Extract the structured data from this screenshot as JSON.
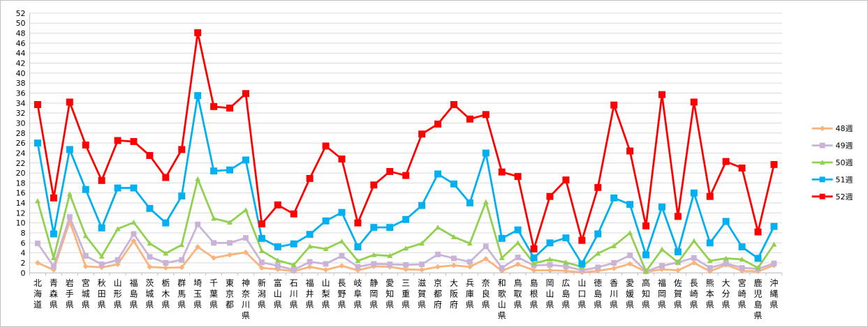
{
  "chart_data": {
    "type": "line",
    "ylim": [
      0,
      52
    ],
    "ytick_step": 2,
    "grid": "horizontal",
    "legend_position": "right",
    "categories": [
      "北海道",
      "青森県",
      "岩手県",
      "宮城県",
      "秋田県",
      "山形県",
      "福島県",
      "茨城県",
      "栃木県",
      "群馬県",
      "埼玉県",
      "千葉県",
      "東京都",
      "神奈川県",
      "新潟県",
      "富山県",
      "石川県",
      "福井県",
      "山梨県",
      "長野県",
      "岐阜県",
      "静岡県",
      "愛知県",
      "三重県",
      "滋賀県",
      "京都府",
      "大阪府",
      "兵庫県",
      "奈良県",
      "和歌山県",
      "鳥取県",
      "島根県",
      "岡山県",
      "広島県",
      "山口県",
      "徳島県",
      "香川県",
      "愛媛県",
      "高知県",
      "福岡県",
      "佐賀県",
      "長崎県",
      "熊本県",
      "大分県",
      "宮崎県",
      "鹿児島県",
      "沖縄県"
    ],
    "series": [
      {
        "name": "48週",
        "color": "#f9b37b",
        "marker": "diamond",
        "values": [
          2,
          0.6,
          10.3,
          1.3,
          1.1,
          1.7,
          6.4,
          1.2,
          1,
          1.1,
          5.2,
          3,
          3.6,
          4.1,
          1,
          0.7,
          0.3,
          1.2,
          0.6,
          1.4,
          0.5,
          1.3,
          1.2,
          0.7,
          0.6,
          1.2,
          1.5,
          1.2,
          2.8,
          0.4,
          1.7,
          0.5,
          0.5,
          0.4,
          0.1,
          0.4,
          0.9,
          1.8,
          0.2,
          0.7,
          0.5,
          2,
          0.3,
          1.6,
          0.4,
          0.3,
          1.5
        ]
      },
      {
        "name": "49週",
        "color": "#c9b4d8",
        "marker": "square",
        "values": [
          5.9,
          1.3,
          11.2,
          3.4,
          1.7,
          2.6,
          7.8,
          3.2,
          2,
          2.6,
          9.7,
          6,
          6,
          7,
          2.1,
          1.4,
          0.6,
          2.2,
          1.8,
          3.4,
          1.2,
          1.8,
          1.7,
          1.6,
          1.7,
          3.7,
          2.9,
          2.2,
          5.3,
          1,
          3.1,
          1.5,
          1.6,
          1.3,
          0.5,
          1.1,
          2,
          3.5,
          0.3,
          1.4,
          2.1,
          3,
          1,
          1.9,
          1,
          0.8,
          1.9
        ]
      },
      {
        "name": "50週",
        "color": "#92d050",
        "marker": "triangle",
        "values": [
          14.4,
          3,
          15.8,
          7.4,
          3.3,
          8.8,
          10.1,
          5.9,
          3.9,
          5.6,
          18.8,
          10.9,
          10.1,
          12.6,
          4.4,
          2.5,
          1.6,
          5.3,
          4.8,
          6.3,
          2.4,
          3.6,
          3.4,
          4.9,
          5.9,
          9.1,
          7.2,
          5.9,
          14.2,
          3,
          6,
          1.9,
          2.7,
          2.1,
          1.2,
          3.9,
          5.4,
          8,
          0.3,
          4.7,
          2.1,
          6.4,
          2.4,
          2.9,
          2.7,
          1,
          5.7
        ]
      },
      {
        "name": "51週",
        "color": "#00b0f0",
        "marker": "square",
        "values": [
          26,
          7.8,
          24.7,
          16.7,
          9,
          17,
          17,
          12.9,
          10,
          15.4,
          35.5,
          20.4,
          20.6,
          22.6,
          6.9,
          5.2,
          5.8,
          7.7,
          10.4,
          12.1,
          5.2,
          9.1,
          9.1,
          10.7,
          13.5,
          19.8,
          17.8,
          14,
          24,
          6.9,
          8.6,
          3,
          6,
          7,
          1.8,
          7.8,
          15,
          13.7,
          3.6,
          13.2,
          4.2,
          16,
          6,
          10.3,
          5.2,
          2.9,
          9.3
        ]
      },
      {
        "name": "52週",
        "color": "#ff0000",
        "marker": "square",
        "values": [
          33.7,
          15,
          34.2,
          25.6,
          18.5,
          26.5,
          26.3,
          23.5,
          19.1,
          24.7,
          48.1,
          33.3,
          33,
          35.9,
          9.8,
          13.6,
          11.8,
          18.9,
          25.4,
          22.8,
          10,
          17.6,
          20.3,
          19.5,
          27.8,
          29.8,
          33.7,
          30.8,
          31.7,
          20.2,
          19.3,
          4.8,
          15.3,
          18.6,
          6.5,
          17.1,
          33.6,
          24.4,
          9.4,
          35.7,
          11.3,
          34.2,
          15.3,
          22.3,
          21,
          8.2,
          21.7
        ]
      }
    ]
  }
}
